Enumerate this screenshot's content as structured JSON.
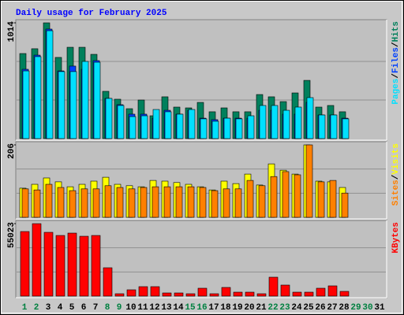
{
  "legend_separator": "/",
  "chart_data": [
    {
      "type": "bar",
      "title": "Daily usage for February 2025",
      "ylim": [
        0,
        1014
      ],
      "yticks": [
        1014
      ],
      "series": [
        {
          "name": "Hits",
          "color": "#00805c",
          "values": [
            745,
            787,
            1014,
            711,
            800,
            800,
            738,
            414,
            345,
            262,
            338,
            200,
            366,
            276,
            269,
            317,
            235,
            269,
            235,
            235,
            386,
            366,
            324,
            400,
            510,
            276,
            290,
            235,
            null,
            null,
            null
          ]
        },
        {
          "name": "Files",
          "color": "#0040ff",
          "values": [
            607,
            731,
            959,
            593,
            635,
            607,
            683,
            352,
            297,
            214,
            214,
            179,
            248,
            214,
            248,
            179,
            166,
            179,
            179,
            179,
            248,
            248,
            214,
            214,
            317,
            207,
            207,
            179,
            null,
            null,
            null
          ]
        },
        {
          "name": "Pages",
          "color": "#00e0ff",
          "values": [
            593,
            718,
            945,
            587,
            587,
            676,
            669,
            352,
            290,
            193,
            200,
            255,
            235,
            214,
            255,
            173,
            152,
            179,
            173,
            200,
            290,
            290,
            248,
            276,
            359,
            207,
            207,
            173,
            null,
            null,
            null
          ]
        }
      ]
    },
    {
      "type": "bar",
      "ylim": [
        0,
        206
      ],
      "yticks": [
        206
      ],
      "series": [
        {
          "name": "Visits",
          "color": "#ffff00",
          "values": [
            83,
            94,
            112,
            101,
            87,
            94,
            103,
            114,
            94,
            90,
            87,
            105,
            103,
            99,
            94,
            87,
            78,
            103,
            96,
            123,
            92,
            152,
            134,
            123,
            206,
            103,
            101,
            85,
            null,
            null,
            null
          ]
        },
        {
          "name": "Sites",
          "color": "#ff8000",
          "values": [
            81,
            78,
            94,
            85,
            76,
            81,
            81,
            90,
            85,
            81,
            85,
            87,
            87,
            87,
            87,
            85,
            76,
            81,
            81,
            105,
            90,
            116,
            130,
            121,
            206,
            101,
            105,
            69,
            null,
            null,
            null
          ]
        }
      ]
    },
    {
      "type": "bar",
      "ylim": [
        0,
        55023
      ],
      "yticks": [
        55023
      ],
      "categories": [
        "1",
        "2",
        "3",
        "4",
        "5",
        "6",
        "7",
        "8",
        "9",
        "10",
        "11",
        "12",
        "13",
        "14",
        "15",
        "16",
        "17",
        "18",
        "19",
        "20",
        "21",
        "22",
        "23",
        "24",
        "25",
        "26",
        "27",
        "28",
        "29",
        "30",
        "31"
      ],
      "category_colors": [
        "#008040",
        "#008040",
        "#000000",
        "#000000",
        "#000000",
        "#000000",
        "#000000",
        "#008040",
        "#008040",
        "#000000",
        "#000000",
        "#000000",
        "#000000",
        "#000000",
        "#008040",
        "#008040",
        "#000000",
        "#000000",
        "#000000",
        "#000000",
        "#000000",
        "#008040",
        "#008040",
        "#000000",
        "#000000",
        "#000000",
        "#000000",
        "#000000",
        "#008040",
        "#008040",
        "#000000"
      ],
      "series": [
        {
          "name": "KBytes",
          "color": "#ff0000",
          "values": [
            49035,
            55023,
            48437,
            46045,
            47839,
            45447,
            46045,
            21528,
            1794,
            4784,
            7176,
            7176,
            2392,
            2392,
            1794,
            5980,
            1794,
            6578,
            2990,
            2990,
            1794,
            14352,
            8372,
            2990,
            2990,
            5980,
            7774,
            3588,
            null,
            null,
            null
          ]
        }
      ]
    }
  ]
}
